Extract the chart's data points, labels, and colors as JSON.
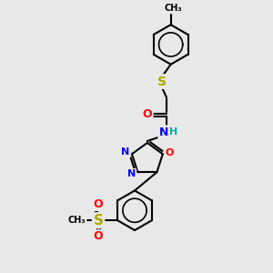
{
  "bg_color": "#e8e8e8",
  "bond_color": "#000000",
  "atom_colors": {
    "N": "#0000ff",
    "O": "#ff0000",
    "S": "#aaaa00",
    "H": "#00aaaa",
    "C": "#000000"
  },
  "line_width": 1.5,
  "font_size": 8,
  "figsize": [
    3.0,
    3.0
  ],
  "dpi": 100
}
